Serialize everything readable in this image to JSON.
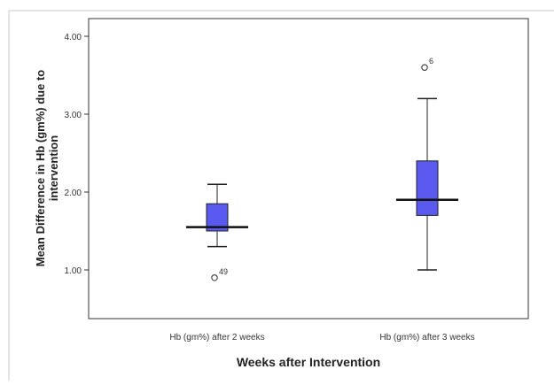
{
  "chart_data": {
    "type": "boxplot",
    "title": "",
    "xlabel": "Weeks after Intervention",
    "ylabel": "Mean Difference in Hb (gm%) due to intervention",
    "ylim": [
      0.5,
      4.1
    ],
    "yticks": [
      1.0,
      2.0,
      3.0,
      4.0
    ],
    "ytick_labels": [
      "1.00",
      "2.00",
      "3.00",
      "4.00"
    ],
    "grid": false,
    "box_color": "#5a5af0",
    "categories": [
      "Hb (gm%) after 2 weeks",
      "Hb (gm%) after 3 weeks"
    ],
    "boxes": [
      {
        "category": "Hb (gm%) after 2 weeks",
        "whisker_low": 1.3,
        "q1": 1.5,
        "median": 1.55,
        "q3": 1.85,
        "whisker_high": 2.1,
        "outliers": [
          {
            "value": 0.9,
            "label": "49"
          }
        ]
      },
      {
        "category": "Hb (gm%) after 3 weeks",
        "whisker_low": 1.0,
        "q1": 1.7,
        "median": 1.9,
        "q3": 2.4,
        "whisker_high": 3.2,
        "outliers": [
          {
            "value": 3.6,
            "label": "6"
          }
        ]
      }
    ]
  }
}
